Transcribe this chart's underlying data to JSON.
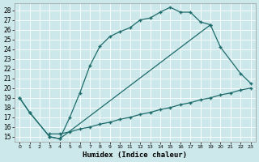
{
  "xlabel": "Humidex (Indice chaleur)",
  "bg_color": "#cde8ea",
  "line_color": "#1e6b6b",
  "grid_color": "#b0d8da",
  "xlim": [
    -0.5,
    23.5
  ],
  "ylim": [
    14.5,
    28.7
  ],
  "ytick_vals": [
    15,
    16,
    17,
    18,
    19,
    20,
    21,
    22,
    23,
    24,
    25,
    26,
    27,
    28
  ],
  "xtick_vals": [
    0,
    1,
    2,
    3,
    4,
    5,
    6,
    7,
    8,
    9,
    10,
    11,
    12,
    13,
    14,
    15,
    16,
    17,
    18,
    19,
    20,
    21,
    22,
    23
  ],
  "curve1_x": [
    0,
    1,
    3,
    4,
    5,
    6,
    7,
    8,
    9,
    10,
    11,
    12,
    13,
    14,
    15,
    16,
    17,
    18,
    19
  ],
  "curve1_y": [
    19.0,
    17.5,
    15.0,
    14.8,
    17.0,
    19.5,
    22.3,
    24.3,
    25.3,
    25.8,
    26.2,
    27.0,
    27.2,
    27.8,
    28.3,
    27.8,
    27.8,
    26.8,
    26.5
  ],
  "curve2_x": [
    3,
    4,
    5,
    6,
    7,
    8,
    9,
    10,
    11,
    12,
    13,
    14,
    15,
    16,
    17,
    18,
    19,
    20,
    21,
    22,
    23
  ],
  "curve2_y": [
    15.3,
    15.3,
    15.5,
    15.8,
    16.0,
    16.3,
    16.5,
    16.8,
    17.0,
    17.3,
    17.5,
    17.8,
    18.0,
    18.3,
    18.5,
    18.8,
    19.0,
    19.3,
    19.5,
    19.8,
    20.0
  ],
  "curve3_x": [
    0,
    1,
    3,
    4,
    19,
    20,
    22,
    23
  ],
  "curve3_y": [
    19.0,
    17.5,
    15.0,
    14.8,
    26.5,
    24.2,
    21.5,
    20.5
  ]
}
